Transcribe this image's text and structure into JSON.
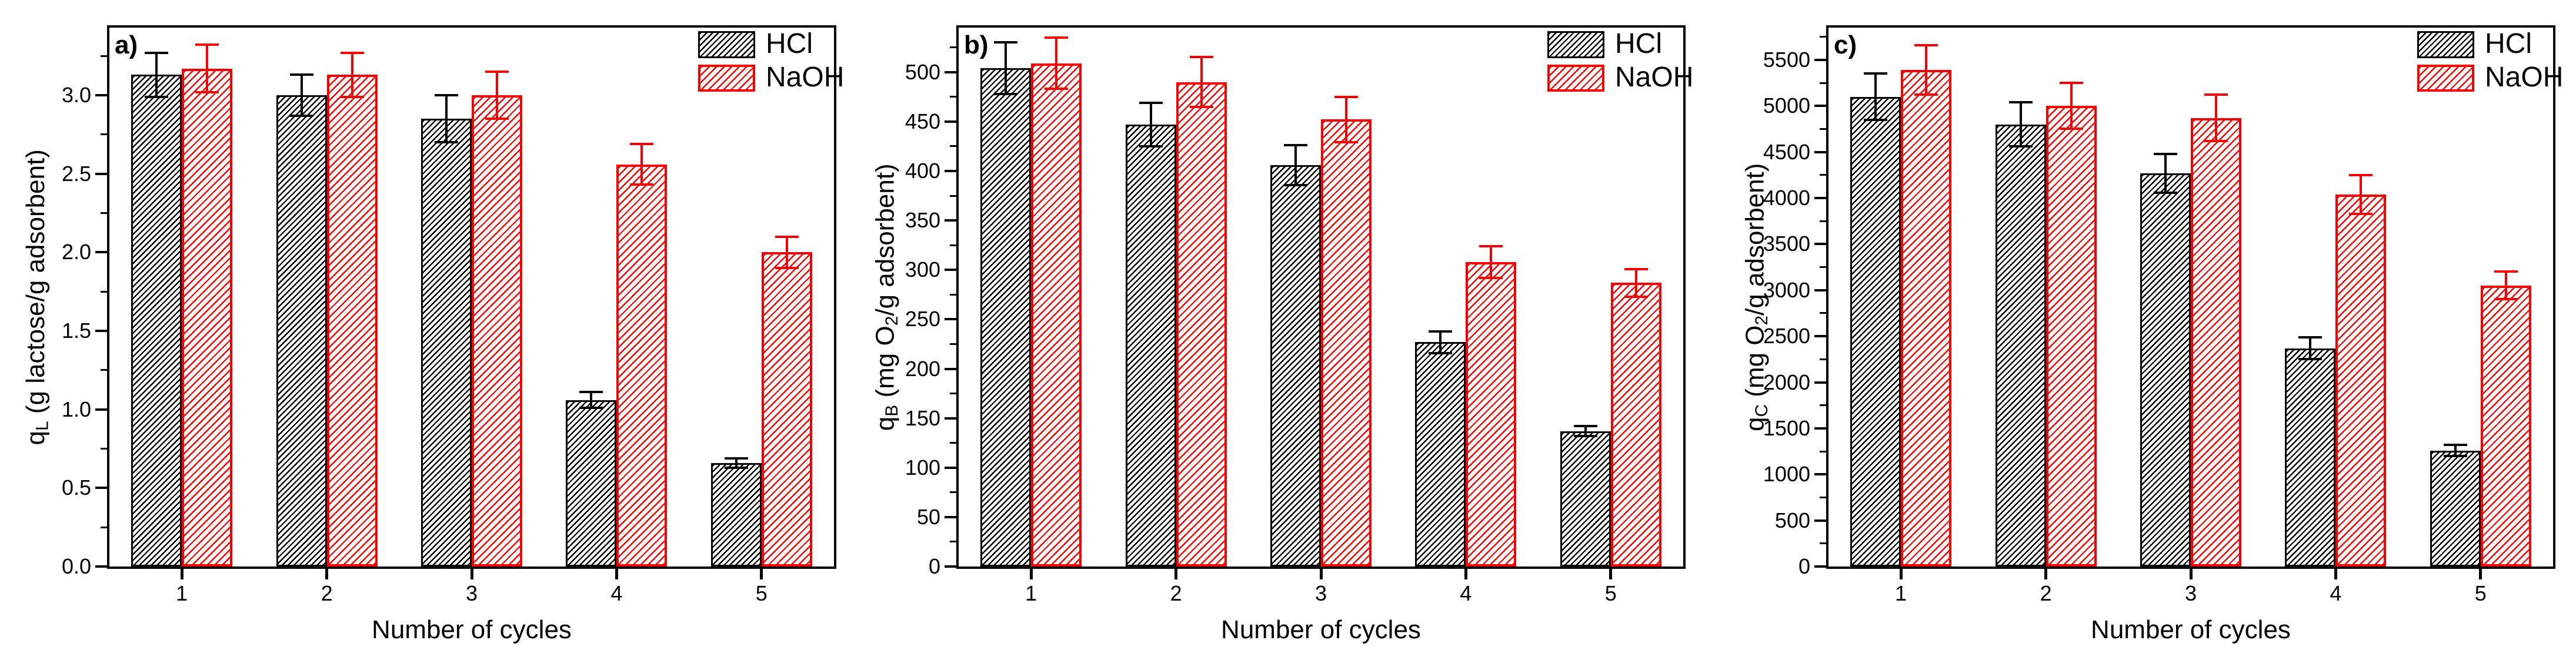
{
  "figure": {
    "background": "#ffffff",
    "series_colors": {
      "HCl": "#000000",
      "NaOH": "#f50000"
    }
  },
  "chart_data": [
    {
      "type": "bar",
      "panel_label": "a)",
      "xlabel": "Number of cycles",
      "ylabel_parts": [
        {
          "t": "q"
        },
        {
          "t": "L",
          "sub": true
        },
        {
          "t": " (g lactose/g adsorbent)"
        }
      ],
      "categories": [
        "1",
        "2",
        "3",
        "4",
        "5"
      ],
      "series": [
        {
          "name": "HCl",
          "color": "#000000",
          "values": [
            3.13,
            3.0,
            2.85,
            1.06,
            0.66
          ],
          "errors": [
            0.14,
            0.13,
            0.15,
            0.05,
            0.03
          ]
        },
        {
          "name": "NaOH",
          "color": "#f50000",
          "values": [
            3.17,
            3.13,
            3.0,
            2.56,
            2.0
          ],
          "errors": [
            0.15,
            0.14,
            0.15,
            0.13,
            0.1
          ]
        }
      ],
      "ylim": [
        0,
        3.43
      ],
      "ytick_values": [
        0,
        0.5,
        1,
        1.5,
        2,
        2.5,
        3
      ],
      "ytick_labels": [
        "0.0",
        "0.5",
        "1.0",
        "1.5",
        "2.0",
        "2.5",
        "3.0"
      ],
      "yminor_step": 0.25,
      "legend_position": "top-right",
      "grid": false
    },
    {
      "type": "bar",
      "panel_label": "b)",
      "xlabel": "Number of cycles",
      "ylabel_parts": [
        {
          "t": "q"
        },
        {
          "t": "B",
          "sub": true
        },
        {
          "t": " (mg O"
        },
        {
          "t": "2",
          "sub": true
        },
        {
          "t": "/g adsorbent)"
        }
      ],
      "categories": [
        "1",
        "2",
        "3",
        "4",
        "5"
      ],
      "series": [
        {
          "name": "HCl",
          "color": "#000000",
          "values": [
            504,
            447,
            406,
            227,
            137
          ],
          "errors": [
            26,
            22,
            20,
            11,
            5
          ]
        },
        {
          "name": "NaOH",
          "color": "#f50000",
          "values": [
            509,
            490,
            452,
            308,
            287
          ],
          "errors": [
            26,
            25,
            23,
            16,
            14
          ]
        }
      ],
      "ylim": [
        0,
        545
      ],
      "ytick_values": [
        0,
        50,
        100,
        150,
        200,
        250,
        300,
        350,
        400,
        450,
        500
      ],
      "ytick_labels": [
        "0",
        "50",
        "100",
        "150",
        "200",
        "250",
        "300",
        "350",
        "400",
        "450",
        "500"
      ],
      "yminor_step": 25,
      "legend_position": "top-right",
      "grid": false
    },
    {
      "type": "bar",
      "panel_label": "c)",
      "xlabel": "Number of cycles",
      "ylabel_parts": [
        {
          "t": "q"
        },
        {
          "t": "C",
          "sub": true
        },
        {
          "t": " (mg O"
        },
        {
          "t": "2",
          "sub": true
        },
        {
          "t": "/g adsorbent)"
        }
      ],
      "categories": [
        "1",
        "2",
        "3",
        "4",
        "5"
      ],
      "series": [
        {
          "name": "HCl",
          "color": "#000000",
          "values": [
            5100,
            4800,
            4270,
            2370,
            1260
          ],
          "errors": [
            250,
            240,
            210,
            120,
            60
          ]
        },
        {
          "name": "NaOH",
          "color": "#f50000",
          "values": [
            5390,
            5000,
            4870,
            4040,
            3050
          ],
          "errors": [
            270,
            250,
            250,
            210,
            150
          ]
        }
      ],
      "ylim": [
        0,
        5850
      ],
      "ytick_values": [
        0,
        500,
        1000,
        1500,
        2000,
        2500,
        3000,
        3500,
        4000,
        4500,
        5000,
        5500
      ],
      "ytick_labels": [
        "0",
        "500",
        "1000",
        "1500",
        "2000",
        "2500",
        "3000",
        "3500",
        "4000",
        "4500",
        "5000",
        "5500"
      ],
      "yminor_step": 250,
      "legend_position": "top-right",
      "grid": false
    }
  ]
}
